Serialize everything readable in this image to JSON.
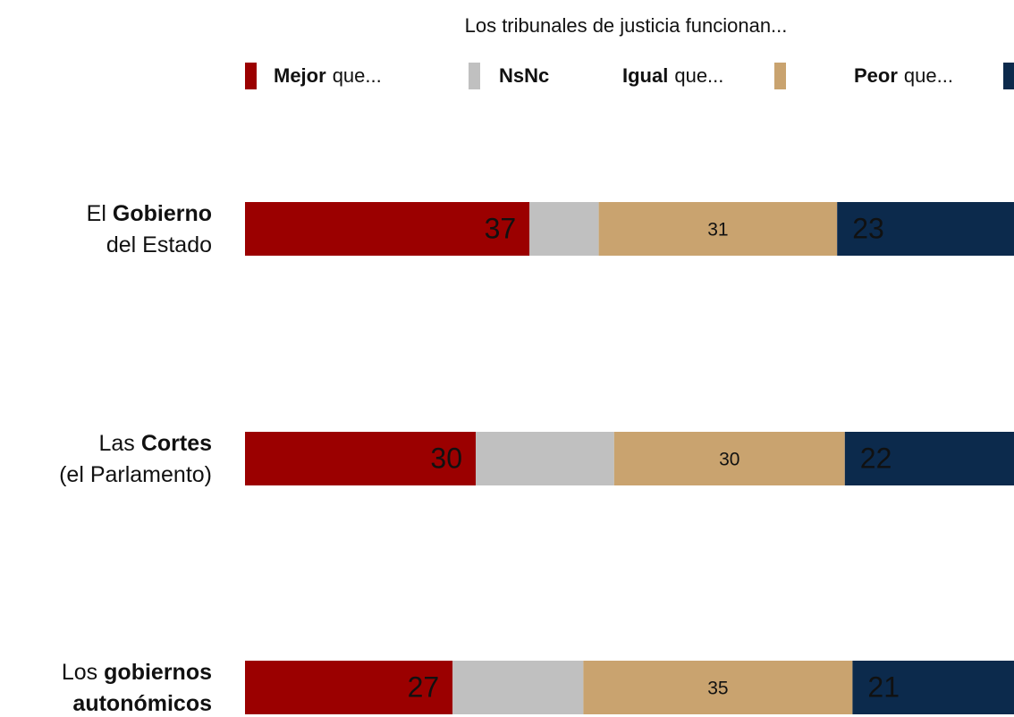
{
  "chart_data": {
    "type": "stacked-bar-horizontal",
    "title": "Los tribunales de justicia funcionan...",
    "categories": [
      [
        [
          {
            "text": "El",
            "bold": false
          },
          {
            "text": "Gobierno",
            "bold": true
          }
        ],
        [
          {
            "text": "del Estado",
            "bold": false
          }
        ]
      ],
      [
        [
          {
            "text": "Las",
            "bold": false
          },
          {
            "text": "Cortes",
            "bold": true
          }
        ],
        [
          {
            "text": "(el Parlamento)",
            "bold": false
          }
        ]
      ],
      [
        [
          {
            "text": "Los",
            "bold": false
          },
          {
            "text": "gobiernos",
            "bold": true
          }
        ],
        [
          {
            "text": "autonómicos",
            "bold": true
          }
        ]
      ]
    ],
    "series": [
      {
        "name": [
          {
            "text": "Mejor",
            "bold": true
          },
          {
            "text": "que...",
            "bold": false
          }
        ],
        "color": "#9b0000",
        "values": [
          37,
          30,
          27
        ],
        "labels": true
      },
      {
        "name": [
          {
            "text": "NsNc",
            "bold": true
          }
        ],
        "color": "#c0c0c0",
        "values": [
          9,
          18,
          17
        ],
        "labels": false
      },
      {
        "name": [
          {
            "text": "Igual",
            "bold": true
          },
          {
            "text": "que...",
            "bold": false
          }
        ],
        "color": "#c9a36f",
        "values": [
          31,
          30,
          35
        ],
        "labels": true
      },
      {
        "name": [
          {
            "text": "Peor",
            "bold": true
          },
          {
            "text": "que...",
            "bold": false
          }
        ],
        "color": "#0c2a4c",
        "values": [
          23,
          22,
          21
        ],
        "labels": true
      }
    ],
    "xlim": [
      0,
      100
    ]
  }
}
